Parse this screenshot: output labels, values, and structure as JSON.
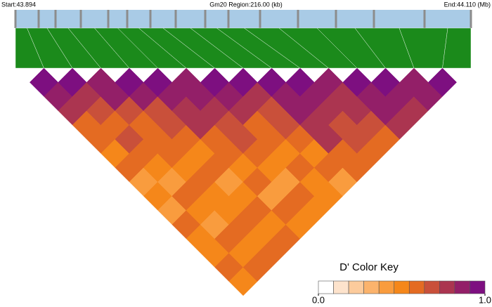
{
  "chart_data": {
    "type": "ld-heatmap",
    "title": "Gm20 Region:216.00 (kb)",
    "xlim": [
      43.894,
      44.11
    ],
    "xticks": [
      {
        "value": 43.894,
        "label": "Start:43.894"
      },
      {
        "value": 44.11,
        "label": "End:44.110 (Mb)"
      }
    ],
    "snp_positions": [
      43.894,
      43.905,
      43.913,
      43.925,
      43.938,
      43.947,
      43.958,
      43.97,
      43.984,
      43.995,
      44.01,
      44.028,
      44.046,
      44.064,
      44.088,
      44.11
    ],
    "map_color": "#1b8a1b",
    "strip_color": "#a9cbe6",
    "snp_strip_color": "#8c8c8c",
    "dprime": [
      [
        0.92,
        0.9,
        0.75,
        0.6,
        0.55,
        0.5,
        0.62,
        0.45,
        0.5,
        0.4,
        0.55,
        0.48,
        0.5,
        0.6,
        0.52
      ],
      [
        0.93,
        0.8,
        0.7,
        0.6,
        0.65,
        0.55,
        0.5,
        0.45,
        0.6,
        0.5,
        0.45,
        0.55,
        0.5,
        0.58
      ],
      [
        0.9,
        0.85,
        0.7,
        0.6,
        0.55,
        0.6,
        0.5,
        0.55,
        0.48,
        0.52,
        0.6,
        0.5,
        0.55
      ],
      [
        0.95,
        0.9,
        0.7,
        0.65,
        0.55,
        0.5,
        0.6,
        0.45,
        0.5,
        0.55,
        0.5,
        0.6
      ],
      [
        0.94,
        0.88,
        0.8,
        0.75,
        0.6,
        0.55,
        0.5,
        0.6,
        0.45,
        0.55,
        0.5
      ],
      [
        0.9,
        0.85,
        0.8,
        0.7,
        0.65,
        0.55,
        0.5,
        0.45,
        0.6,
        0.5
      ],
      [
        0.92,
        0.88,
        0.75,
        0.6,
        0.55,
        0.5,
        0.55,
        0.48,
        0.52
      ],
      [
        0.93,
        0.8,
        0.7,
        0.65,
        0.6,
        0.5,
        0.55,
        0.45
      ],
      [
        0.95,
        0.9,
        0.85,
        0.8,
        0.75,
        0.6,
        0.55
      ],
      [
        0.92,
        0.85,
        0.8,
        0.7,
        0.65,
        0.6
      ],
      [
        0.9,
        0.8,
        0.75,
        0.65,
        0.6
      ],
      [
        0.95,
        0.9,
        0.85,
        0.75
      ],
      [
        0.93,
        0.88,
        0.8
      ],
      [
        0.9,
        0.85
      ],
      [
        0.92
      ]
    ],
    "color_key": {
      "title": "D' Color Key",
      "xlim": [
        0,
        1
      ],
      "xticks": [
        {
          "value": 0,
          "label": "0.0"
        },
        {
          "value": 1,
          "label": "1.0"
        }
      ],
      "colors": [
        "#ffffff",
        "#fde3cc",
        "#fccb9c",
        "#fbb36c",
        "#f99c3e",
        "#f5871a",
        "#e46b22",
        "#c9503a",
        "#ab3550",
        "#931f68",
        "#7d0f80"
      ]
    }
  }
}
